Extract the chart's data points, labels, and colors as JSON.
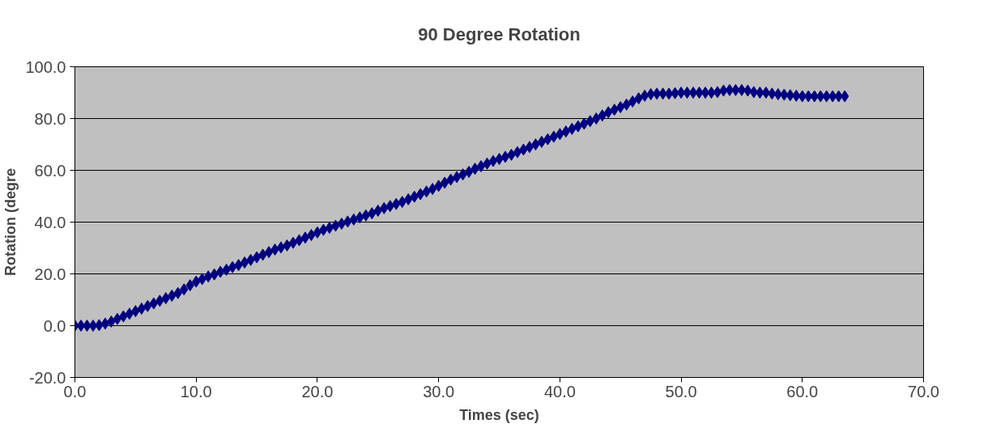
{
  "chart_data": {
    "type": "scatter",
    "title": "90 Degree Rotation",
    "xlabel": "Times (sec)",
    "ylabel": "Rotation (degre",
    "x": [
      0,
      0.5,
      1,
      1.5,
      2,
      2.5,
      3,
      3.5,
      4,
      4.5,
      5,
      5.5,
      6,
      6.5,
      7,
      7.5,
      8,
      8.5,
      9,
      9.5,
      10,
      10.5,
      11,
      11.5,
      12,
      12.5,
      13,
      13.5,
      14,
      14.5,
      15,
      15.5,
      16,
      16.5,
      17,
      17.5,
      18,
      18.5,
      19,
      19.5,
      20,
      20.5,
      21,
      21.5,
      22,
      22.5,
      23,
      23.5,
      24,
      24.5,
      25,
      25.5,
      26,
      26.5,
      27,
      27.5,
      28,
      28.5,
      29,
      29.5,
      30,
      30.5,
      31,
      31.5,
      32,
      32.5,
      33,
      33.5,
      34,
      34.5,
      35,
      35.5,
      36,
      36.5,
      37,
      37.5,
      38,
      38.5,
      39,
      39.5,
      40,
      40.5,
      41,
      41.5,
      42,
      42.5,
      43,
      43.5,
      44,
      44.5,
      45,
      45.5,
      46,
      46.5,
      47,
      47.5,
      48,
      48.5,
      49,
      49.5,
      50,
      50.5,
      51,
      51.5,
      52,
      52.5,
      53,
      53.5,
      54,
      54.5,
      55,
      55.5,
      56,
      56.5,
      57,
      57.5,
      58,
      58.5,
      59,
      59.5,
      60,
      60.5,
      61,
      61.5,
      62,
      62.5,
      63,
      63.5
    ],
    "series": [
      {
        "color": "#000080",
        "values": [
          0,
          0,
          0,
          0,
          0.2,
          0.8,
          1.6,
          2.6,
          3.6,
          4.6,
          5.6,
          6.6,
          7.6,
          8.6,
          9.6,
          10.6,
          11.6,
          12.6,
          14.0,
          15.6,
          17.0,
          18.0,
          19.0,
          19.8,
          20.8,
          21.6,
          22.6,
          23.4,
          24.4,
          25.4,
          26.4,
          27.4,
          28.4,
          29.4,
          30.2,
          31.0,
          32.0,
          33.0,
          34.0,
          35.0,
          36.0,
          37.0,
          37.8,
          38.6,
          39.4,
          40.2,
          41.0,
          41.8,
          42.6,
          43.4,
          44.4,
          45.4,
          46.2,
          47.0,
          47.8,
          48.8,
          49.8,
          50.8,
          51.8,
          52.8,
          54.0,
          55.2,
          56.4,
          57.4,
          58.4,
          59.4,
          60.6,
          61.6,
          62.6,
          63.6,
          64.4,
          65.2,
          66.0,
          67.0,
          68.0,
          69.0,
          70.0,
          71.0,
          72.0,
          73.0,
          74.0,
          75.0,
          76.0,
          77.0,
          78.0,
          79.0,
          80.0,
          81.2,
          82.4,
          83.4,
          84.4,
          85.4,
          86.6,
          87.8,
          88.8,
          89.4,
          89.6,
          89.6,
          89.6,
          89.8,
          90.0,
          90.0,
          90.0,
          90.0,
          90.0,
          90.0,
          90.2,
          90.8,
          91.0,
          91.0,
          91.0,
          90.8,
          90.2,
          90.0,
          90.0,
          89.6,
          89.4,
          89.2,
          89.0,
          88.8,
          88.6,
          88.6,
          88.6,
          88.6,
          88.6,
          88.6,
          88.6,
          88.6
        ]
      }
    ],
    "xlim": [
      0,
      70
    ],
    "xticks": [
      {
        "value": 0,
        "label": "0.0"
      },
      {
        "value": 10,
        "label": "10.0"
      },
      {
        "value": 20,
        "label": "20.0"
      },
      {
        "value": 30,
        "label": "30.0"
      },
      {
        "value": 40,
        "label": "40.0"
      },
      {
        "value": 50,
        "label": "50.0"
      },
      {
        "value": 60,
        "label": "60.0"
      },
      {
        "value": 70,
        "label": "70.0"
      }
    ],
    "ylim": [
      -20,
      100
    ],
    "yticks": [
      {
        "value": -20,
        "label": "-20.0"
      },
      {
        "value": 0,
        "label": "0.0"
      },
      {
        "value": 20,
        "label": "20.0"
      },
      {
        "value": 40,
        "label": "40.0"
      },
      {
        "value": 60,
        "label": "60.0"
      },
      {
        "value": 80,
        "label": "80.0"
      },
      {
        "value": 100,
        "label": "100.0"
      }
    ],
    "grid": "y",
    "marker": "diamond"
  }
}
